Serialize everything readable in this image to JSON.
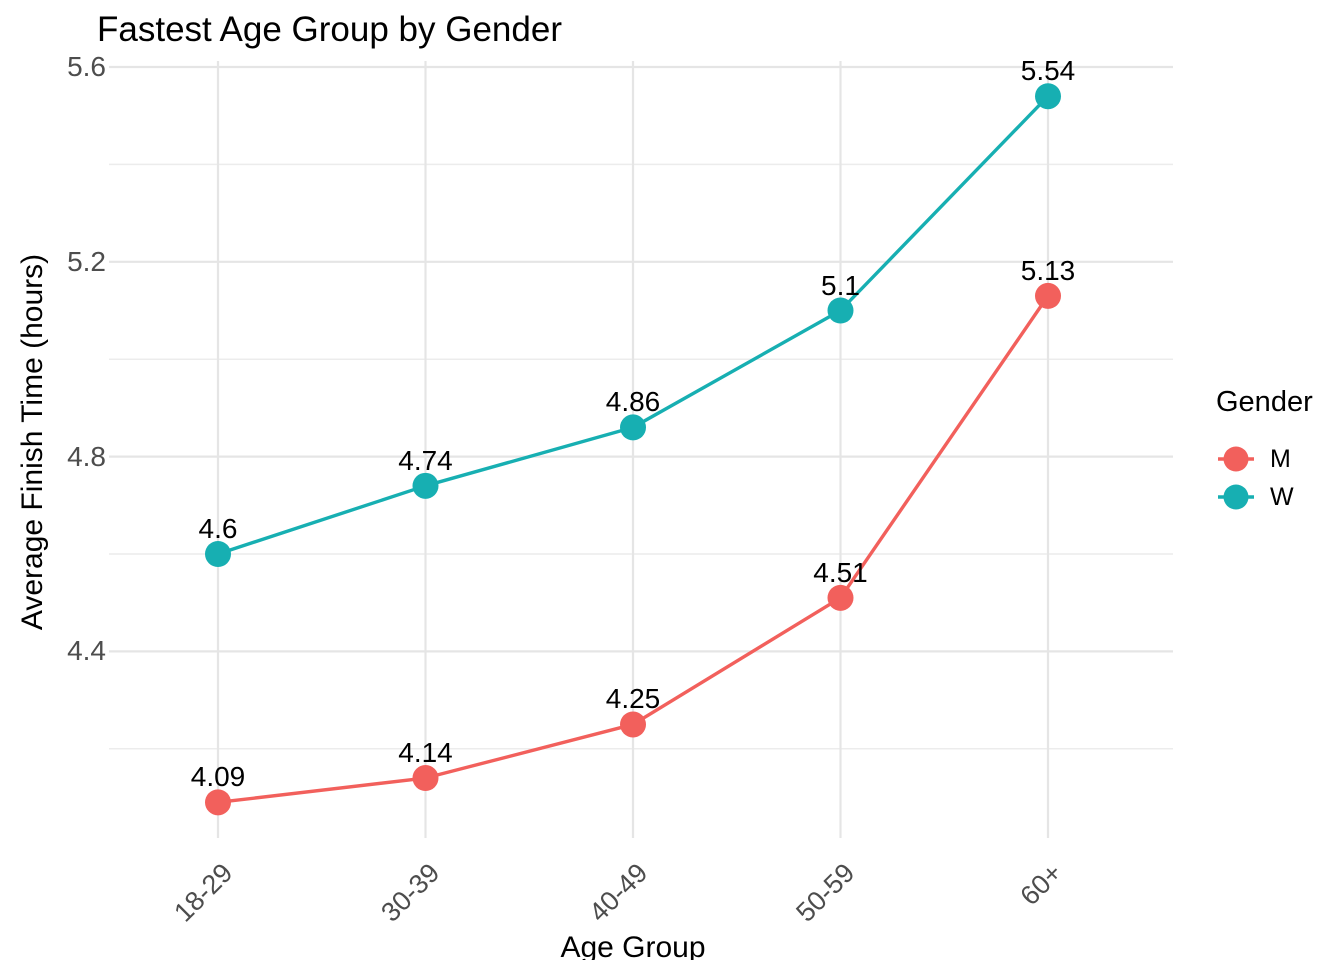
{
  "chart_data": {
    "type": "line",
    "title": "Fastest Age Group by Gender",
    "xlabel": "Age Group",
    "ylabel": "Average Finish Time (hours)",
    "categories": [
      "18-29",
      "30-39",
      "40-49",
      "50-59",
      "60+"
    ],
    "series": [
      {
        "name": "M",
        "color": "#F2605C",
        "values": [
          4.09,
          4.14,
          4.25,
          4.51,
          5.13
        ],
        "point_labels": [
          "4.09",
          "4.14",
          "4.25",
          "4.51",
          "5.13"
        ]
      },
      {
        "name": "W",
        "color": "#17AFB2",
        "values": [
          4.6,
          4.74,
          4.86,
          5.1,
          5.54
        ],
        "point_labels": [
          "4.6",
          "4.74",
          "4.86",
          "5.1",
          "5.54"
        ]
      }
    ],
    "y_axis": {
      "ticks": [
        {
          "value": 5.6,
          "label": "5.6"
        },
        {
          "value": 5.2,
          "label": "5.2"
        },
        {
          "value": 4.8,
          "label": "4.8"
        },
        {
          "value": 4.4,
          "label": "4.4"
        }
      ],
      "minor_ticks": [
        5.4,
        5.0,
        4.6,
        4.2
      ],
      "ylim": [
        4.02,
        5.61
      ]
    },
    "legend": {
      "title": "Gender",
      "position": "right"
    },
    "grid": true,
    "colors": {
      "grid_major": "#E5E5E5",
      "grid_minor": "#ECECEC",
      "tick_label": "#4D4D4D",
      "text": "#000000",
      "background": "#FFFFFF"
    }
  }
}
